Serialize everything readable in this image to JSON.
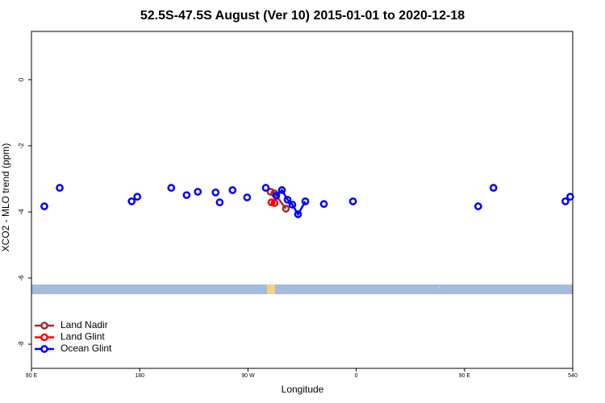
{
  "chart_data": {
    "type": "scatter",
    "title": "52.5S-47.5S August (Ver 10)   2015-01-01 to 2020-12-18",
    "x_label": "Longitude",
    "y_label": "XCO2 - MLO trend (ppm)",
    "xlim": [
      90,
      540
    ],
    "ylim": [
      -8.73,
      1.46
    ],
    "xticks": [
      {
        "value": 90,
        "label": "90 E"
      },
      180,
      {
        "value": 270,
        "label": "90 W"
      },
      {
        "value": 360,
        "label": "0"
      },
      {
        "value": 450,
        "label": "90 E"
      },
      540
    ],
    "yticks": [
      0,
      -2,
      -4,
      -6,
      -8
    ],
    "legend": "bottom-left",
    "series": [
      {
        "name": "Land Nadir",
        "color": "#a52a2a",
        "x": [
          288.8,
          292.1,
          301.5
        ],
        "values": [
          -3.39,
          -3.44,
          -3.9
        ]
      },
      {
        "name": "Land Glint",
        "color": "#ff0000",
        "x": [
          289.5,
          292.1
        ],
        "values": [
          -3.71,
          -3.73
        ]
      },
      {
        "name": "Ocean Glint",
        "color": "#0000ff",
        "x": [
          100.7,
          null,
          113.5,
          null,
          173.3,
          null,
          178,
          null,
          206.2,
          null,
          219,
          null,
          228.3,
          null,
          243.1,
          null,
          246.5,
          null,
          257.2,
          null,
          269.3,
          null,
          284.8,
          null,
          293.5,
          298.2,
          302.9,
          306.9,
          311.6,
          317.7,
          null,
          333.1,
          null,
          357.3,
          null,
          461.4,
          null,
          474.1,
          null,
          533.9,
          null,
          537.9
        ],
        "values": [
          -3.83,
          null,
          -3.27,
          null,
          -3.68,
          null,
          -3.54,
          null,
          -3.27,
          null,
          -3.49,
          null,
          -3.39,
          null,
          -3.41,
          null,
          -3.71,
          null,
          -3.34,
          null,
          -3.56,
          null,
          -3.27,
          null,
          -3.51,
          -3.34,
          -3.63,
          -3.78,
          -4.07,
          -3.68,
          null,
          -3.76,
          null,
          -3.68,
          null,
          -3.83,
          null,
          -3.27,
          null,
          -3.68,
          null,
          -3.54
        ]
      }
    ]
  }
}
